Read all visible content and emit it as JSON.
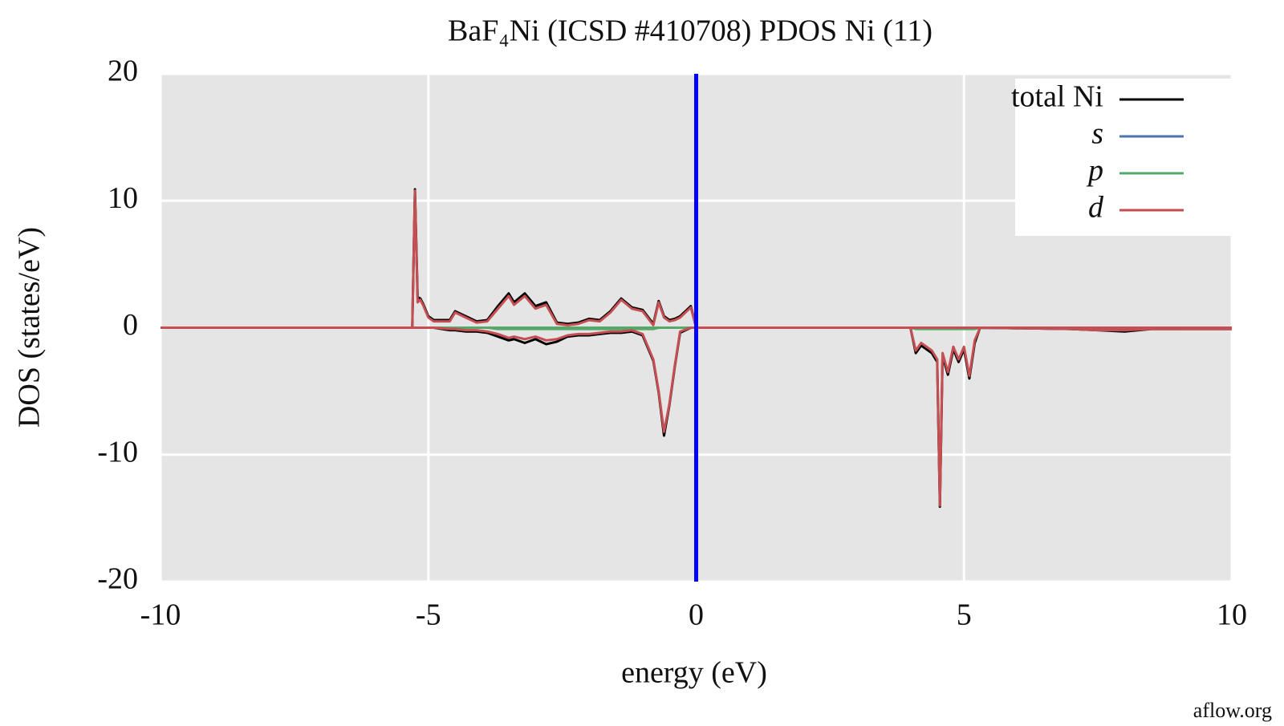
{
  "chart_data": {
    "type": "line",
    "title": "BaF₄Ni (ICSD #410708) PDOS Ni (11)",
    "xlabel": "energy (eV)",
    "ylabel": "DOS (states/eV)",
    "watermark": "aflow.org",
    "x": [
      -10,
      -5.3,
      -5.25,
      -5.2,
      -5.15,
      -5.1,
      -5.0,
      -4.9,
      -4.6,
      -4.5,
      -4.3,
      -4.1,
      -3.9,
      -3.7,
      -3.5,
      -3.4,
      -3.2,
      -3.0,
      -2.8,
      -2.6,
      -2.4,
      -2.2,
      -2.0,
      -1.8,
      -1.6,
      -1.4,
      -1.2,
      -1.0,
      -0.8,
      -0.7,
      -0.6,
      -0.5,
      -0.4,
      -0.3,
      -0.1,
      0,
      0.1,
      4.0,
      4.1,
      4.2,
      4.3,
      4.4,
      4.5,
      4.55,
      4.6,
      4.7,
      4.8,
      4.9,
      5.0,
      5.1,
      5.2,
      5.3,
      7.0,
      7.5,
      8.0,
      8.5,
      9.0,
      10
    ],
    "series": [
      {
        "name": "total Ni",
        "color": "#000000",
        "values": [
          0,
          0,
          10.9,
          2.4,
          2.3,
          1.9,
          0.9,
          0.6,
          0.6,
          1.3,
          0.9,
          0.5,
          0.6,
          1.7,
          2.7,
          2.0,
          2.7,
          1.7,
          2.0,
          0.4,
          0.3,
          0.4,
          0.7,
          0.6,
          1.3,
          2.3,
          1.6,
          1.4,
          0.3,
          2.1,
          0.9,
          0.6,
          0.7,
          0.9,
          1.7,
          0,
          0,
          0,
          0,
          0,
          0,
          0,
          0,
          0,
          0,
          0,
          0,
          0,
          0,
          0,
          0,
          0,
          0,
          0,
          0,
          0,
          0,
          0
        ],
        "values_down": [
          0,
          0,
          0,
          0,
          0,
          0,
          0,
          0,
          -0.2,
          -0.2,
          -0.3,
          -0.3,
          -0.4,
          -0.7,
          -1.0,
          -0.9,
          -1.2,
          -0.9,
          -1.3,
          -1.1,
          -0.7,
          -0.6,
          -0.6,
          -0.5,
          -0.4,
          -0.4,
          -0.3,
          -0.6,
          -2.6,
          -5.1,
          -8.5,
          -6.1,
          -3.1,
          -0.4,
          0,
          0,
          0,
          0,
          -2.0,
          -1.4,
          -1.7,
          -2.0,
          -2.7,
          -14.1,
          -2.2,
          -3.7,
          -1.7,
          -2.7,
          -1.7,
          -4.0,
          -1.2,
          0,
          -0.1,
          -0.2,
          -0.3,
          -0.1,
          -0.1,
          -0.1
        ]
      },
      {
        "name": "s",
        "color": "#4c72b0",
        "values": [
          0,
          0,
          0,
          0,
          0,
          0,
          0,
          0,
          0,
          0,
          0,
          0,
          0,
          0,
          0,
          0,
          0,
          0,
          0,
          0,
          0,
          0,
          0,
          0,
          0,
          0,
          0,
          0,
          0,
          0,
          0,
          0,
          0,
          0,
          0,
          0,
          0,
          0,
          0,
          0,
          0,
          0,
          0,
          0,
          0,
          0,
          0,
          0,
          0,
          0,
          0,
          0,
          0,
          0,
          0,
          0,
          0,
          0
        ],
        "values_down": [
          0,
          0,
          0,
          0,
          0,
          0,
          0,
          0,
          0,
          0,
          0,
          0,
          0,
          0,
          0,
          0,
          0,
          0,
          0,
          0,
          0,
          0,
          0,
          0,
          0,
          0,
          0,
          0,
          0,
          0,
          0,
          0,
          0,
          0,
          0,
          0,
          0,
          0,
          0,
          0,
          0,
          0,
          0,
          0,
          0,
          0,
          0,
          0,
          0,
          0,
          0,
          0,
          -0.1,
          -0.1,
          -0.1,
          -0.1,
          -0.1,
          0
        ]
      },
      {
        "name": "p",
        "color": "#55a868",
        "values": [
          0,
          0,
          0,
          0,
          0,
          0,
          0,
          0,
          0,
          0,
          0,
          0,
          0,
          0,
          0,
          0,
          0,
          0,
          0,
          0,
          0,
          0,
          0,
          0,
          0,
          0,
          0,
          0,
          0,
          0,
          0,
          0,
          0,
          0,
          0,
          0,
          0,
          0,
          0,
          0,
          0,
          0,
          0,
          0,
          0,
          0,
          0,
          0,
          0,
          0,
          0,
          0,
          0,
          0,
          0,
          0,
          0,
          0
        ],
        "values_down": [
          0,
          0,
          0,
          0,
          0,
          0,
          0,
          0,
          0,
          0,
          0,
          0,
          0,
          -0.1,
          -0.1,
          -0.1,
          -0.1,
          -0.1,
          -0.1,
          -0.1,
          -0.1,
          -0.1,
          -0.1,
          -0.1,
          -0.1,
          -0.1,
          -0.1,
          -0.1,
          -0.1,
          0,
          0,
          0,
          0,
          0,
          0,
          0,
          0,
          0,
          -0.1,
          -0.1,
          -0.1,
          -0.1,
          -0.1,
          -0.1,
          -0.1,
          -0.1,
          -0.1,
          -0.1,
          -0.1,
          -0.1,
          -0.1,
          0,
          0,
          0,
          0,
          0,
          0,
          0
        ]
      },
      {
        "name": "d",
        "color": "#c44e52",
        "values": [
          0,
          0,
          10.8,
          2,
          2.2,
          1.8,
          0.8,
          0.5,
          0.5,
          1.2,
          0.8,
          0.4,
          0.5,
          1.5,
          2.5,
          1.8,
          2.5,
          1.5,
          1.8,
          0.3,
          0.2,
          0.3,
          0.6,
          0.5,
          1.2,
          2.2,
          1.5,
          1.3,
          0.2,
          2,
          0.8,
          0.5,
          0.6,
          0.8,
          1.6,
          0,
          0,
          0,
          0,
          0,
          0,
          0,
          0,
          0,
          0,
          0,
          0,
          0,
          0,
          0,
          0,
          0,
          0,
          0,
          0,
          0,
          0,
          0
        ],
        "values_down": [
          0,
          0,
          0,
          0,
          0,
          0,
          0,
          0,
          -0.1,
          -0.1,
          -0.2,
          -0.2,
          -0.3,
          -0.5,
          -0.8,
          -0.7,
          -0.9,
          -0.7,
          -1.0,
          -0.9,
          -0.6,
          -0.5,
          -0.5,
          -0.4,
          -0.3,
          -0.3,
          -0.2,
          -0.5,
          -2.5,
          -5,
          -8.2,
          -6,
          -3,
          -0.3,
          0,
          0,
          0,
          0,
          -1.8,
          -1.2,
          -1.5,
          -1.8,
          -2.5,
          -14,
          -2,
          -3.5,
          -1.5,
          -2.5,
          -1.5,
          -3.8,
          -1,
          0,
          -0.1,
          -0.2,
          -0.2,
          -0.1,
          -0.1,
          -0.1
        ]
      }
    ],
    "vlines": [
      {
        "x": 0,
        "color": "#0000ff"
      }
    ],
    "xlim": [
      -10,
      10
    ],
    "xticks": [
      -10,
      -5,
      0,
      5,
      10
    ],
    "ylim": [
      -20,
      20
    ],
    "yticks": [
      -20,
      -10,
      0,
      10,
      20
    ],
    "grid": true,
    "legend": "upper right"
  }
}
